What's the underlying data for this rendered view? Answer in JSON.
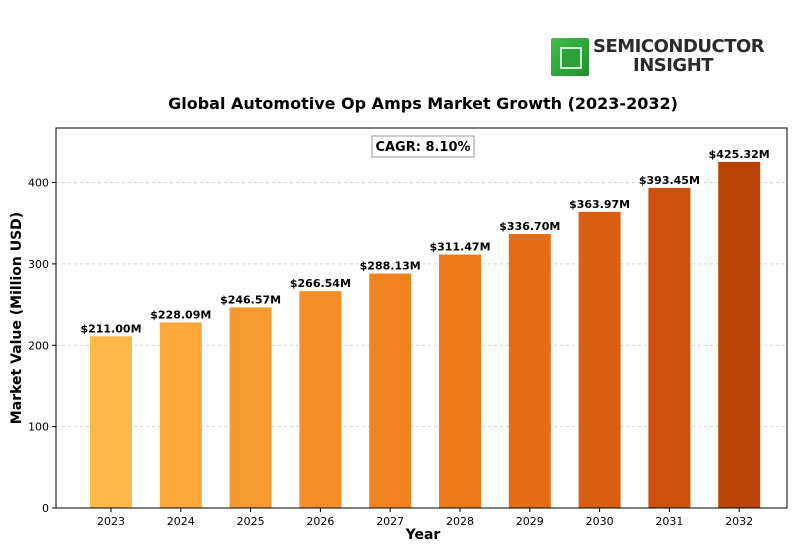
{
  "logo": {
    "line1": "SEMICONDUCTOR",
    "line2": "INSIGHT",
    "icon": "chip-icon"
  },
  "chart_data": {
    "type": "bar",
    "title": "Global Automotive Op Amps Market Growth (2023-2032)",
    "xlabel": "Year",
    "ylabel": "Market Value (Million USD)",
    "annotation": "CAGR: 8.10%",
    "categories": [
      "2023",
      "2024",
      "2025",
      "2026",
      "2027",
      "2028",
      "2029",
      "2030",
      "2031",
      "2032"
    ],
    "values": [
      211.0,
      228.09,
      246.57,
      266.54,
      288.13,
      311.47,
      336.7,
      363.97,
      393.45,
      425.32
    ],
    "value_labels": [
      "$211.00M",
      "$228.09M",
      "$246.57M",
      "$266.54M",
      "$288.13M",
      "$311.47M",
      "$336.70M",
      "$363.97M",
      "$393.45M",
      "$425.32M"
    ],
    "colors": [
      "#FDB847",
      "#FDA93A",
      "#F89B2E",
      "#F58F25",
      "#F1831F",
      "#EC7719",
      "#E56B14",
      "#DC5E10",
      "#CF500B",
      "#B84507"
    ],
    "ylim": [
      0,
      467
    ],
    "yticks": [
      0,
      100,
      200,
      300,
      400
    ],
    "grid": true,
    "legend": "none"
  }
}
